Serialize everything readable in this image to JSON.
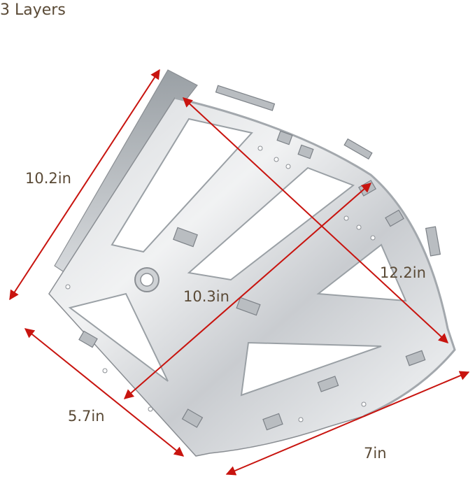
{
  "caption": "3 Layers",
  "dimensions": {
    "side": "10.2in",
    "diagonal": "12.2in",
    "cross": "10.3in",
    "short_edge": "5.7in",
    "bottom_edge": "7in"
  },
  "colors": {
    "arrow": "#c8140f",
    "text": "#5a4a36",
    "metal_light": "#eceef0",
    "metal_mid": "#c4c8cc",
    "metal_dark": "#8a8e93"
  }
}
